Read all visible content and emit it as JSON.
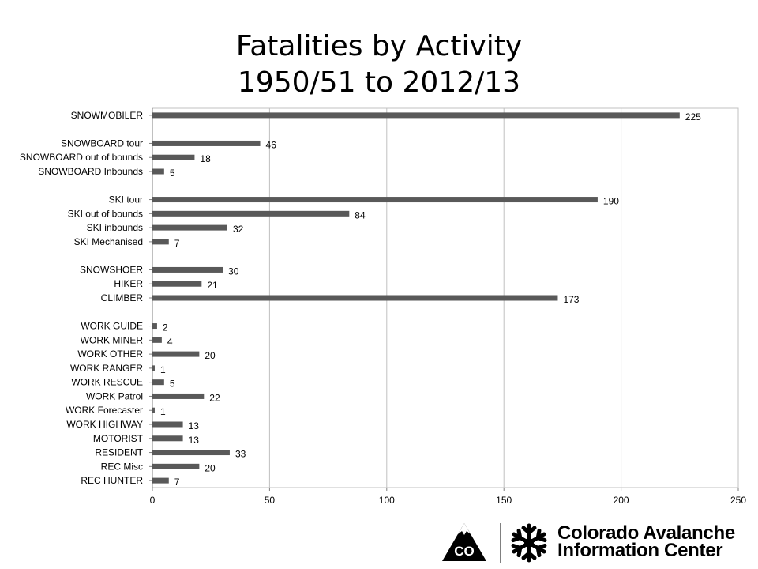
{
  "chart_data": {
    "type": "bar",
    "orientation": "horizontal",
    "title": [
      "Fatalities by Activity",
      "1950/51 to 2012/13"
    ],
    "categories": [
      "SNOWMOBILER",
      "",
      "SNOWBOARD tour",
      "SNOWBOARD out of bounds",
      "SNOWBOARD Inbounds",
      "",
      "SKI tour",
      "SKI out of bounds",
      "SKI inbounds",
      "SKI Mechanised",
      "",
      "SNOWSHOER",
      "HIKER",
      "CLIMBER",
      "",
      "WORK GUIDE",
      "WORK MINER",
      "WORK OTHER",
      "WORK RANGER",
      "WORK RESCUE",
      "WORK Patrol",
      "WORK Forecaster",
      "WORK HIGHWAY",
      "MOTORIST",
      "RESIDENT",
      "REC Misc",
      "REC HUNTER"
    ],
    "values": [
      225,
      null,
      46,
      18,
      5,
      null,
      190,
      84,
      32,
      7,
      null,
      30,
      21,
      173,
      null,
      2,
      4,
      20,
      1,
      5,
      22,
      1,
      13,
      13,
      33,
      20,
      7
    ],
    "xlim": [
      0,
      250
    ],
    "xticks": [
      0,
      50,
      100,
      150,
      200,
      250
    ],
    "grid": true,
    "bar_color": "#595959",
    "data_labels": true
  },
  "logo": {
    "line1": "Colorado Avalanche",
    "line2": "Information Center",
    "mountain_text": "CO",
    "icon": "snowflake-icon"
  }
}
